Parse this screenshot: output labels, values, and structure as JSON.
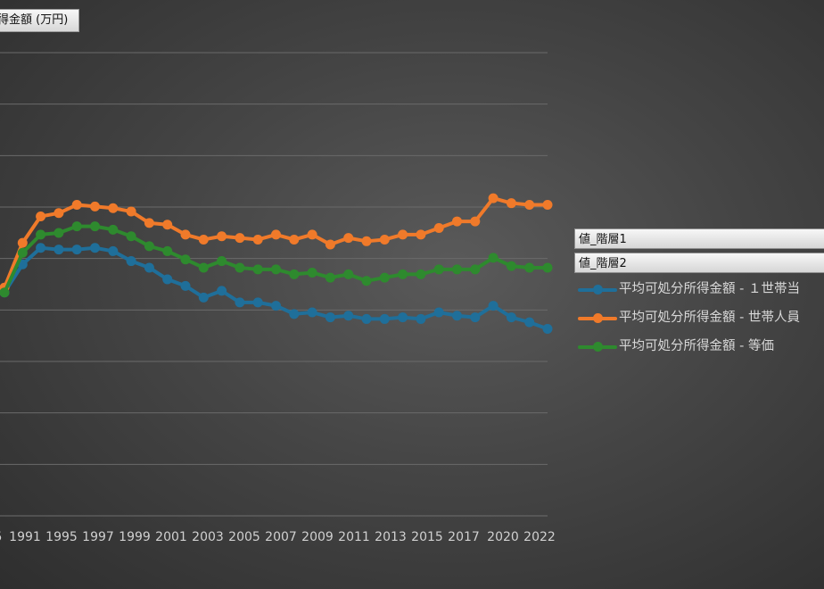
{
  "axis_title": "得金額 (万円)",
  "legend": {
    "fields": [
      "値_階層1",
      "値_階層2"
    ],
    "entries": [
      {
        "label": "平均可処分所得金額 - １世帯当",
        "color": "#1f6f9a"
      },
      {
        "label": "平均可処分所得金額 - 世帯人員",
        "color": "#f07a2a"
      },
      {
        "label": "平均可処分所得金額 - 等価",
        "color": "#2e8a2e"
      }
    ]
  },
  "chart_data": {
    "type": "line",
    "xlabel": "",
    "ylabel": "得金額 (万円)",
    "x": [
      "1985",
      "1991",
      "1994",
      "1995",
      "1996",
      "1997",
      "1998",
      "1999",
      "2000",
      "2001",
      "2002",
      "2003",
      "2004",
      "2005",
      "2006",
      "2007",
      "2008",
      "2009",
      "2010",
      "2011",
      "2012",
      "2013",
      "2014",
      "2015",
      "2016",
      "2017",
      "2018",
      "2019",
      "2020",
      "2021",
      "2022"
    ],
    "x_tick_labels": [
      "5",
      "1991",
      "1995",
      "1997",
      "1999",
      "2001",
      "2003",
      "2005",
      "2007",
      "2009",
      "2011",
      "2013",
      "2015",
      "2017",
      "2020",
      "2022"
    ],
    "y_range": [
      0,
      280
    ],
    "grid": true,
    "series": [
      {
        "name": "平均可処分所得金額 - １世帯当",
        "color": "#1f6f9a",
        "values": [
          135,
          152,
          162,
          161,
          161,
          162,
          160,
          154,
          150,
          143,
          139,
          132,
          136,
          129,
          129,
          127,
          122,
          123,
          120,
          121,
          119,
          119,
          120,
          119,
          123,
          121,
          120,
          127,
          120,
          117,
          113
        ]
      },
      {
        "name": "平均可処分所得金額 - 世帯人員",
        "color": "#f07a2a",
        "values": [
          138,
          165,
          181,
          183,
          188,
          187,
          186,
          184,
          177,
          176,
          170,
          167,
          169,
          168,
          167,
          170,
          167,
          170,
          164,
          168,
          166,
          167,
          170,
          170,
          174,
          178,
          178,
          192,
          189,
          188,
          188
        ]
      },
      {
        "name": "平均可処分所得金額 - 等価",
        "color": "#2e8a2e",
        "values": [
          135,
          159,
          170,
          171,
          175,
          175,
          173,
          169,
          163,
          160,
          155,
          150,
          154,
          150,
          149,
          149,
          146,
          147,
          144,
          146,
          142,
          144,
          146,
          146,
          149,
          149,
          149,
          156,
          151,
          150,
          150
        ]
      }
    ]
  }
}
